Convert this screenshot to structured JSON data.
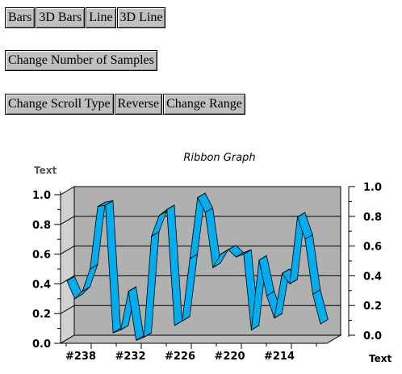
{
  "buttons": {
    "row1": [
      "Bars",
      "3D Bars",
      "Line",
      "3D Line"
    ],
    "row2": [
      "Change Number of Samples"
    ],
    "row3": [
      "Change Scroll Type",
      "Reverse",
      "Change Range"
    ]
  },
  "chart_data": {
    "type": "line",
    "style": "3d-ribbon",
    "title": "Ribbon Graph",
    "ylabel_left": "Text",
    "xlabel_right": "Text",
    "ylim": [
      0,
      1
    ],
    "yticks": [
      "0.0",
      "0.2",
      "0.4",
      "0.6",
      "0.8",
      "1.0"
    ],
    "xtick_labels": [
      "#238",
      "#232",
      "#226",
      "#220",
      "#214"
    ],
    "grid": true,
    "values": [
      0.42,
      0.3,
      0.35,
      0.5,
      0.92,
      0.93,
      0.07,
      0.09,
      0.35,
      0.02,
      0.04,
      0.72,
      0.86,
      0.9,
      0.12,
      0.15,
      0.57,
      0.98,
      0.88,
      0.51,
      0.6,
      0.63,
      0.58,
      0.6,
      0.09,
      0.56,
      0.32,
      0.17,
      0.47,
      0.4,
      0.85,
      0.7,
      0.33,
      0.13
    ],
    "colors": {
      "ribbon_top": "#00aeef",
      "ribbon_front": "#1e90ff",
      "plot_bg": "#b0b0b0",
      "wall": "#d0d0d0",
      "floor": "#bcbcbc"
    }
  }
}
